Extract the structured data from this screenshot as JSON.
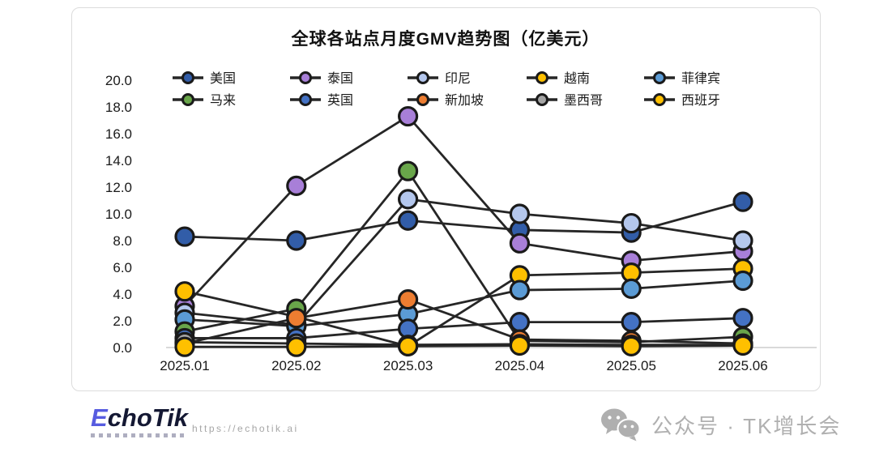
{
  "title": "全球各站点月度GMV趋势图（亿美元）",
  "chart_data": {
    "type": "line",
    "x": [
      "2025.01",
      "2025.02",
      "2025.03",
      "2025.04",
      "2025.05",
      "2025.06"
    ],
    "series": [
      {
        "name": "美国",
        "color": "#325DA8",
        "values": [
          8.3,
          8.0,
          9.5,
          8.8,
          8.6,
          10.9
        ]
      },
      {
        "name": "泰国",
        "color": "#A87FD8",
        "values": [
          3.1,
          12.1,
          17.3,
          7.8,
          6.5,
          7.2
        ]
      },
      {
        "name": "印尼",
        "color": "#B4C7ED",
        "values": [
          2.6,
          1.7,
          11.1,
          10.0,
          9.3,
          8.0
        ]
      },
      {
        "name": "越南",
        "color": "#FFC000",
        "values": [
          4.2,
          2.3,
          0.1,
          5.4,
          5.6,
          5.9
        ]
      },
      {
        "name": "菲律宾",
        "color": "#5B9BD5",
        "values": [
          2.1,
          1.6,
          2.5,
          4.3,
          4.4,
          5.0
        ]
      },
      {
        "name": "马来",
        "color": "#69A64A",
        "values": [
          1.2,
          2.9,
          13.2,
          0.5,
          0.4,
          0.8
        ]
      },
      {
        "name": "英国",
        "color": "#4472C4",
        "values": [
          0.7,
          0.7,
          1.4,
          1.9,
          1.9,
          2.2
        ]
      },
      {
        "name": "新加坡",
        "color": "#ED7D31",
        "values": [
          0.3,
          2.2,
          3.6,
          0.6,
          0.5,
          0.3
        ]
      },
      {
        "name": "墨西哥",
        "color": "#A5A5A5",
        "values": [
          0.4,
          0.3,
          0.2,
          0.25,
          0.2,
          0.2
        ]
      },
      {
        "name": "西班牙",
        "color": "#FFC000",
        "values": [
          0.05,
          0.05,
          0.1,
          0.15,
          0.1,
          0.15
        ]
      }
    ],
    "ylim": [
      0,
      20
    ],
    "ytick_step": 2,
    "grid": false,
    "legend_position": "top",
    "line_color": "#262626",
    "axis_line_color": "#d9d9d9"
  },
  "footer": {
    "logo_first_letter": "E",
    "logo_rest": "choTik",
    "url": "https://echotik.ai",
    "wechat_label": "公众号 · TK增长会"
  }
}
